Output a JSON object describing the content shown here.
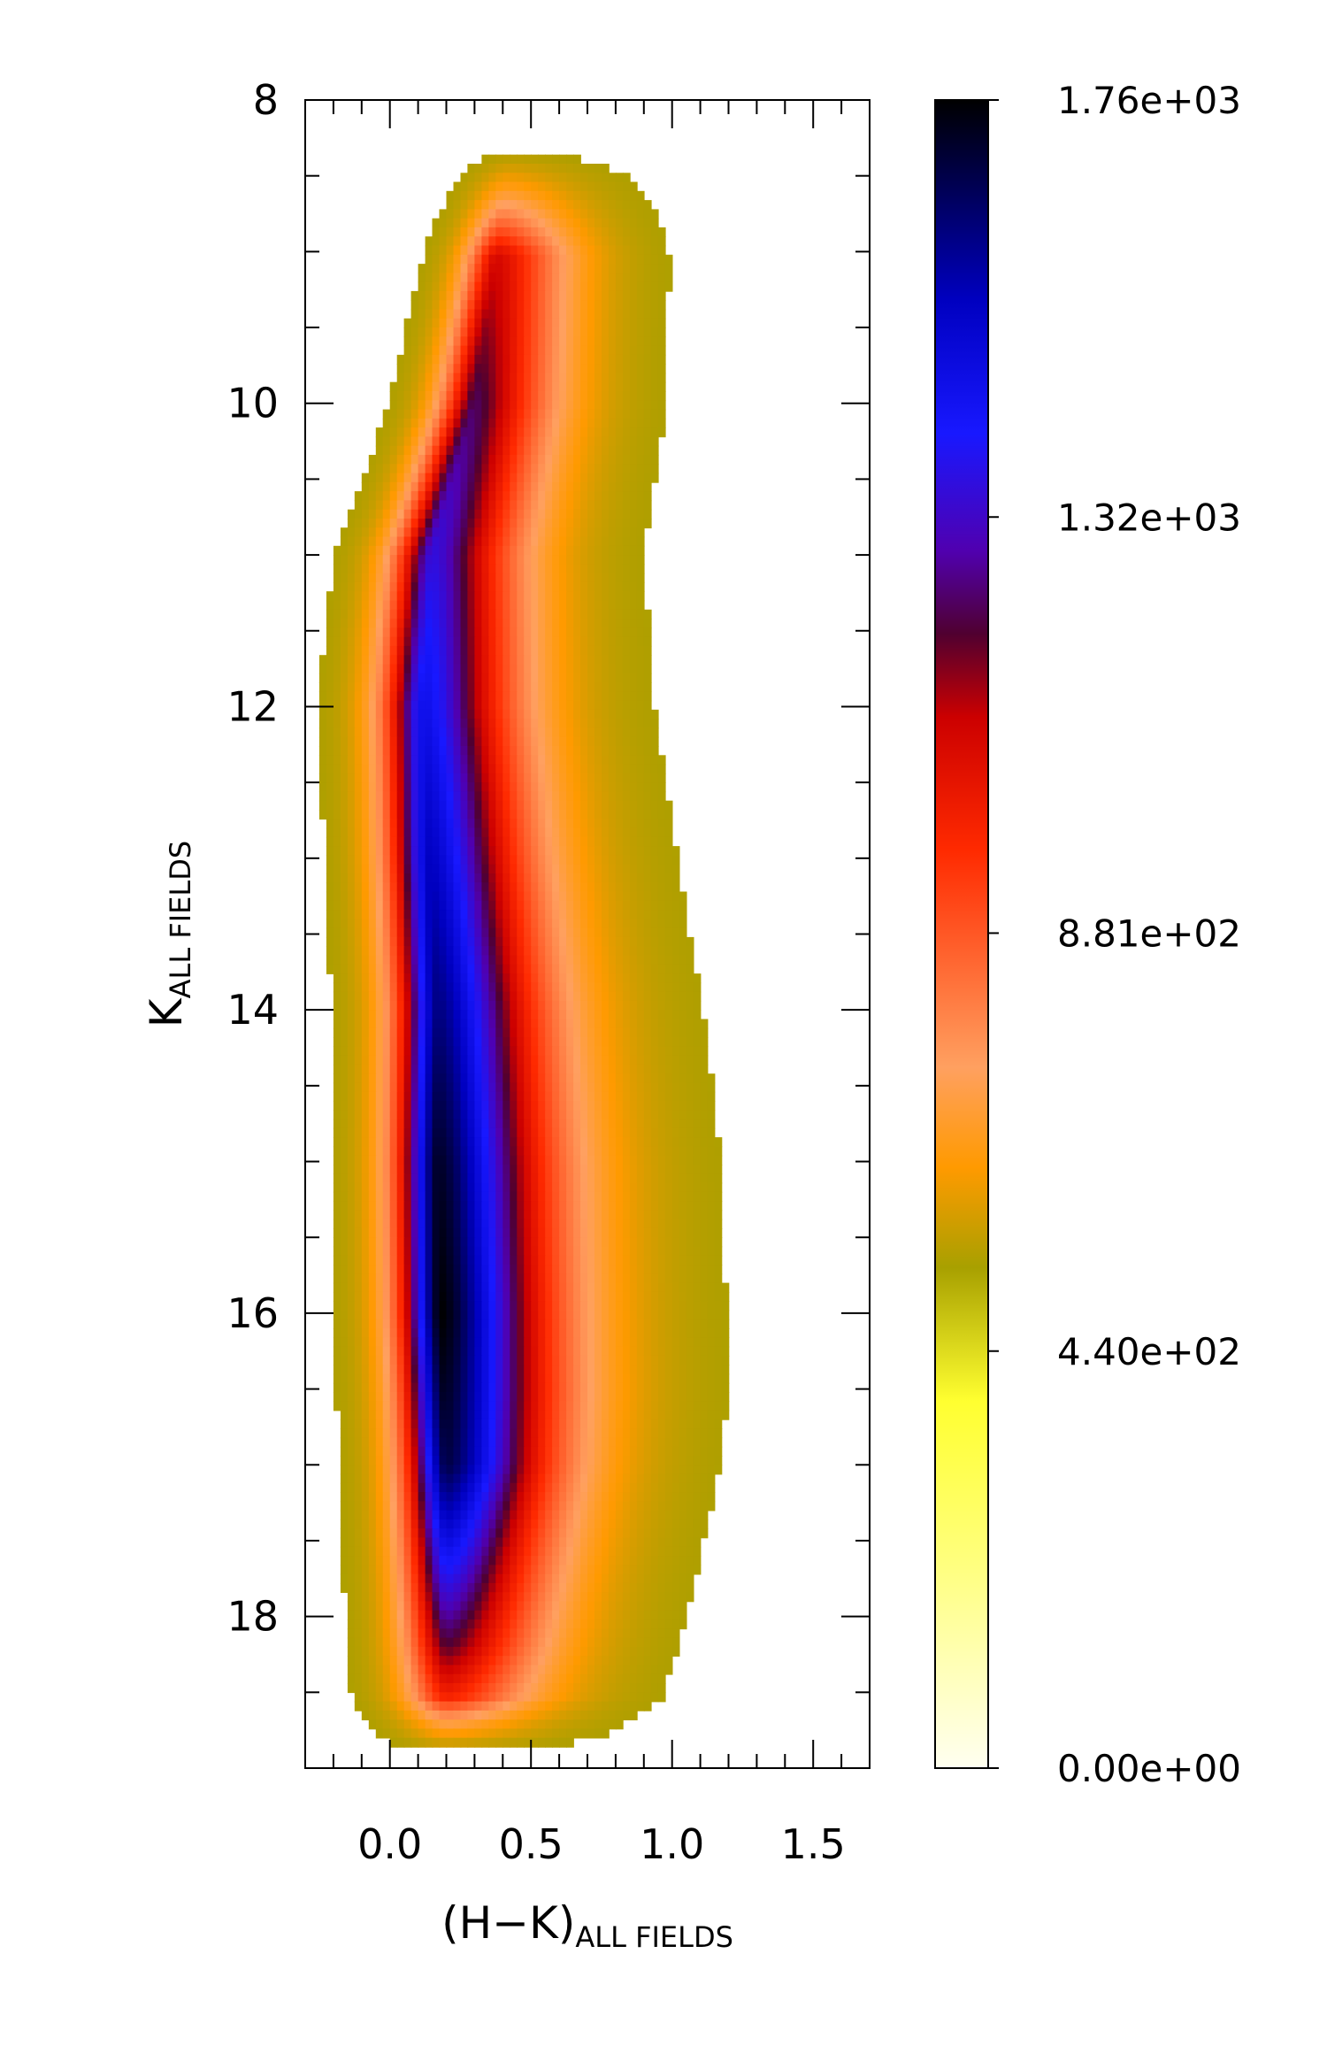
{
  "chart_data": {
    "type": "heatmap",
    "title": "",
    "xlabel": {
      "main": "(H−K)",
      "subscript": "ALL FIELDS"
    },
    "ylabel": {
      "main": "K",
      "subscript": "ALL FIELDS"
    },
    "xlim": [
      -0.3,
      1.7
    ],
    "ylim": [
      19,
      8
    ],
    "y_axis_inverted": true,
    "x_major_ticks": [
      0.0,
      0.5,
      1.0,
      1.5
    ],
    "x_tick_labels": [
      "0.0",
      "0.5",
      "1.0",
      "1.5"
    ],
    "x_minor_step": 0.1,
    "y_major_ticks": [
      8,
      10,
      12,
      14,
      16,
      18
    ],
    "y_tick_labels": [
      "8",
      "10",
      "12",
      "14",
      "16",
      "18"
    ],
    "y_minor_step": 0.5,
    "density_ridge": [
      {
        "k": 8.4,
        "hk": 0.42,
        "peak": 420
      },
      {
        "k": 9.0,
        "hk": 0.38,
        "peak": 780
      },
      {
        "k": 10.0,
        "hk": 0.3,
        "peak": 1000
      },
      {
        "k": 11.0,
        "hk": 0.15,
        "peak": 1180
      },
      {
        "k": 12.0,
        "hk": 0.12,
        "peak": 1330
      },
      {
        "k": 13.0,
        "hk": 0.14,
        "peak": 1450
      },
      {
        "k": 14.0,
        "hk": 0.17,
        "peak": 1560
      },
      {
        "k": 15.0,
        "hk": 0.17,
        "peak": 1700
      },
      {
        "k": 16.0,
        "hk": 0.18,
        "peak": 1760
      },
      {
        "k": 17.0,
        "hk": 0.2,
        "peak": 1650
      },
      {
        "k": 17.6,
        "hk": 0.2,
        "peak": 1300
      },
      {
        "k": 18.2,
        "hk": 0.2,
        "peak": 950
      },
      {
        "k": 18.7,
        "hk": 0.2,
        "peak": 520
      }
    ],
    "colorbar": {
      "min": 0,
      "max": 1760,
      "tick_values": [
        0,
        440,
        881,
        1320,
        1760
      ],
      "tick_labels": [
        "0.00e+00",
        "4.40e+02",
        "8.81e+02",
        "1.32e+03",
        "1.76e+03"
      ],
      "colormap": [
        {
          "v": 0.0,
          "color": "#fffff0"
        },
        {
          "v": 0.12,
          "color": "#ffff80"
        },
        {
          "v": 0.22,
          "color": "#ffff30"
        },
        {
          "v": 0.3,
          "color": "#a8a000"
        },
        {
          "v": 0.36,
          "color": "#ff9a00"
        },
        {
          "v": 0.42,
          "color": "#ffa060"
        },
        {
          "v": 0.55,
          "color": "#ff2a00"
        },
        {
          "v": 0.63,
          "color": "#cc0000"
        },
        {
          "v": 0.68,
          "color": "#500030"
        },
        {
          "v": 0.73,
          "color": "#5000b0"
        },
        {
          "v": 0.8,
          "color": "#1818ff"
        },
        {
          "v": 0.88,
          "color": "#0000c0"
        },
        {
          "v": 1.0,
          "color": "#000000"
        }
      ]
    }
  }
}
